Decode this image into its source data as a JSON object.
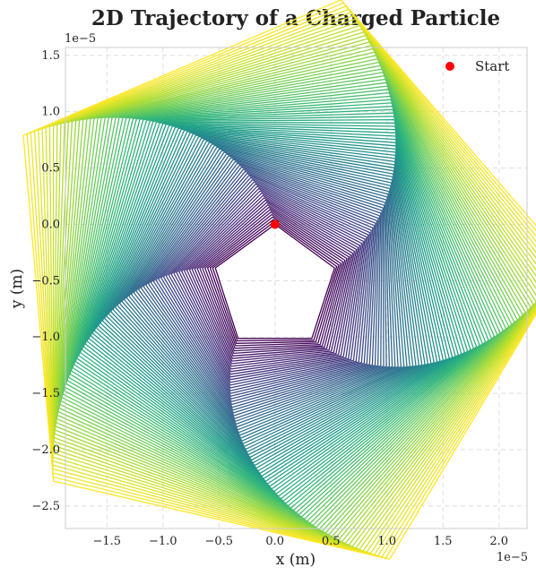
{
  "chart_data": {
    "type": "line",
    "title": "2D Trajectory of a Charged Particle",
    "xlabel": "x (m)",
    "ylabel": "y (m)",
    "x_offset_label": "1e−5",
    "y_offset_label": "1e−5",
    "xlim": [
      -1.87,
      2.25
    ],
    "ylim": [
      -2.7,
      1.57
    ],
    "x_ticks": [
      -1.5,
      -1.0,
      -0.5,
      0.0,
      0.5,
      1.0,
      1.5,
      2.0
    ],
    "x_tick_labels": [
      "−1.5",
      "−1.0",
      "−0.5",
      "0.0",
      "0.5",
      "1.0",
      "1.5",
      "2.0"
    ],
    "y_ticks": [
      1.5,
      1.0,
      0.5,
      0.0,
      -0.5,
      -1.0,
      -1.5,
      -2.0,
      -2.5
    ],
    "y_tick_labels": [
      "1.5",
      "1.0",
      "0.5",
      "0.0",
      "−0.5",
      "−1.0",
      "−1.5",
      "−2.0",
      "−2.5"
    ],
    "grid": true,
    "legend": {
      "placement": "top-right",
      "entries": [
        {
          "label": "Start",
          "color": "#ff0000",
          "marker": "circle"
        }
      ]
    },
    "colormap": "viridis",
    "trajectory": {
      "shape": "pentagon-spiral",
      "center": [
        0.0,
        -0.56
      ],
      "inner_vertex_radius": 0.56,
      "outer_vertex_radius": 2.62,
      "inner_first_vertex_angle_deg": 90,
      "outer_first_vertex_angle_deg": 149,
      "turns": 95
    },
    "start_point": {
      "x": 0.0,
      "y": 0.0
    },
    "colors": {
      "start_marker": "#ff0000",
      "grid": "#dddddd",
      "frame": "#cccccc"
    }
  }
}
